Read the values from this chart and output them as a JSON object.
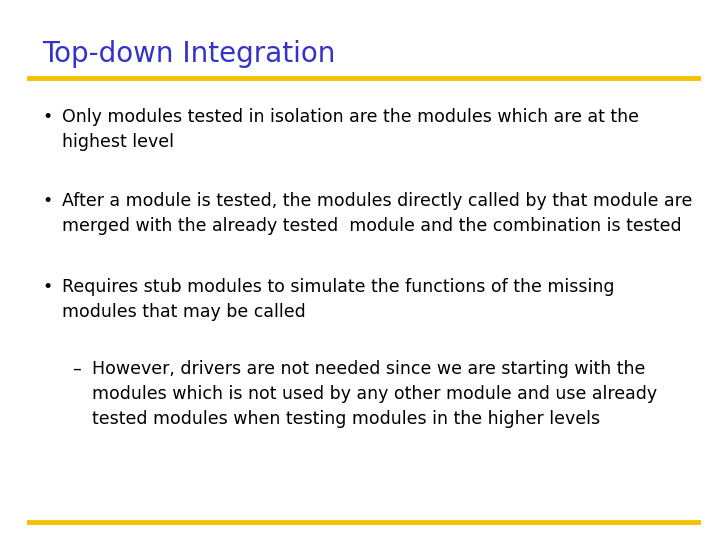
{
  "title": "Top-down Integration",
  "title_color": "#3333cc",
  "title_fontsize": 20,
  "bg_color": "#ffffff",
  "line_color": "#f5c200",
  "line_color_bottom": "#f5c200",
  "body_text_color": "#000000",
  "body_fontsize": 12.5,
  "bullet_points": [
    {
      "level": 0,
      "text": "Only modules tested in isolation are the modules which are at the\nhighest level"
    },
    {
      "level": 0,
      "text": "After a module is tested, the modules directly called by that module are\nmerged with the already tested  module and the combination is tested"
    },
    {
      "level": 0,
      "text": "Requires stub modules to simulate the functions of the missing\nmodules that may be called"
    },
    {
      "level": 1,
      "text": "However, drivers are not needed since we are starting with the\nmodules which is not used by any other module and use already\ntested modules when testing modules in the higher levels"
    }
  ]
}
